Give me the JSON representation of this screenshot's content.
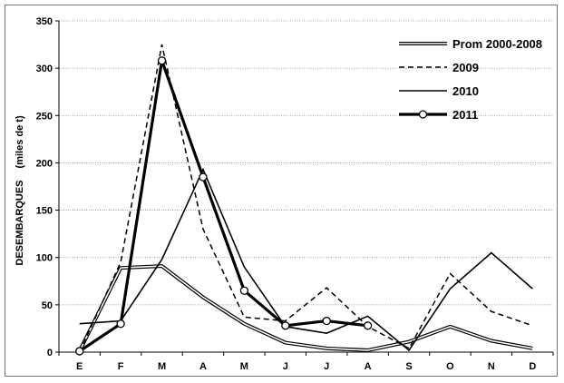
{
  "chart_data": {
    "type": "line",
    "categories": [
      "E",
      "F",
      "M",
      "A",
      "M",
      "J",
      "J",
      "A",
      "S",
      "O",
      "N",
      "D"
    ],
    "ylabel": "DESEMBARQUES",
    "ylabel_unit": "(miles de t)",
    "ylim": [
      0,
      350
    ],
    "yticks": [
      0,
      50,
      100,
      150,
      200,
      250,
      300,
      350
    ],
    "grid": "horizontal dotted",
    "legend_position": "top-right",
    "series": [
      {
        "name": "Prom 2000-2008",
        "style": "double",
        "color": "#000000",
        "values": [
          1,
          89,
          91,
          58,
          30,
          10,
          4,
          2,
          11,
          27,
          12,
          4
        ]
      },
      {
        "name": "2009",
        "style": "dashed",
        "color": "#000000",
        "values": [
          0,
          95,
          325,
          130,
          37,
          33,
          68,
          27,
          4,
          83,
          43,
          28
        ]
      },
      {
        "name": "2010",
        "style": "solid",
        "color": "#000000",
        "values": [
          30,
          33,
          98,
          193,
          90,
          27,
          20,
          38,
          2,
          67,
          105,
          67
        ]
      },
      {
        "name": "2011",
        "style": "bold-markers",
        "color": "#000000",
        "values": [
          1,
          30,
          308,
          185,
          65,
          28,
          33,
          28,
          null,
          null,
          null,
          null
        ]
      }
    ]
  }
}
